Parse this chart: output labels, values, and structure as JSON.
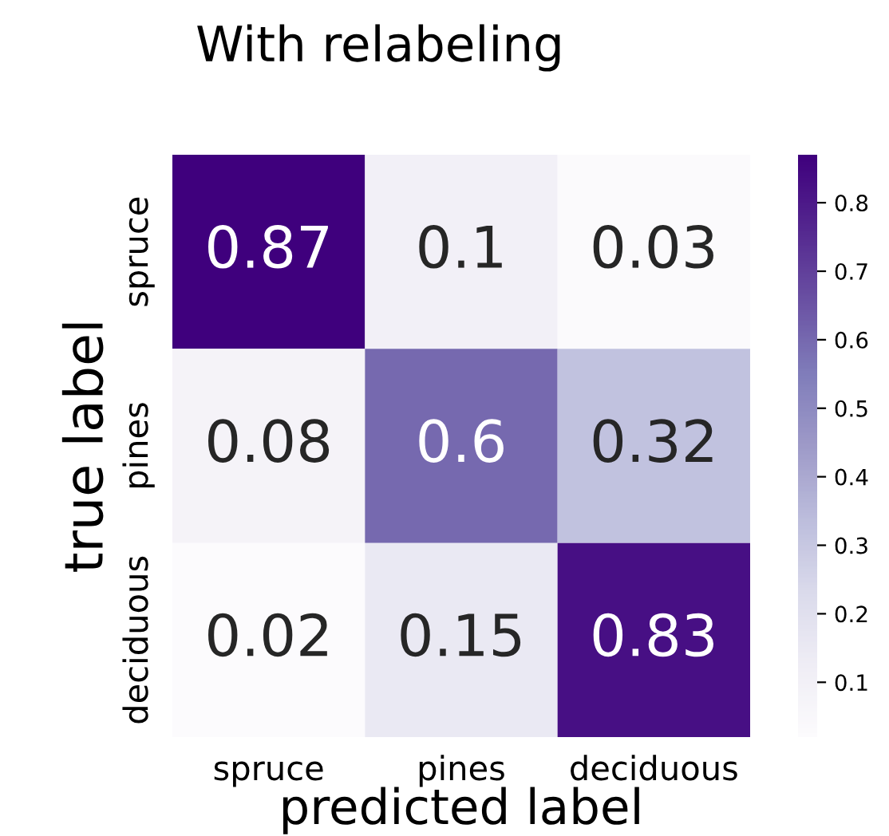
{
  "chart_data": {
    "type": "heatmap",
    "title": "With relabeling",
    "xlabel": "predicted label",
    "ylabel": "true label",
    "categories": [
      "spruce",
      "pines",
      "deciduous"
    ],
    "y_categories": [
      "spruce",
      "pines",
      "deciduous"
    ],
    "cells": [
      [
        0.87,
        0.1,
        0.03
      ],
      [
        0.08,
        0.6,
        0.32
      ],
      [
        0.02,
        0.15,
        0.83
      ]
    ],
    "clim": [
      0.02,
      0.87
    ],
    "cticks": [
      0.1,
      0.2,
      0.3,
      0.4,
      0.5,
      0.6,
      0.7,
      0.8
    ],
    "data_labels": true
  }
}
